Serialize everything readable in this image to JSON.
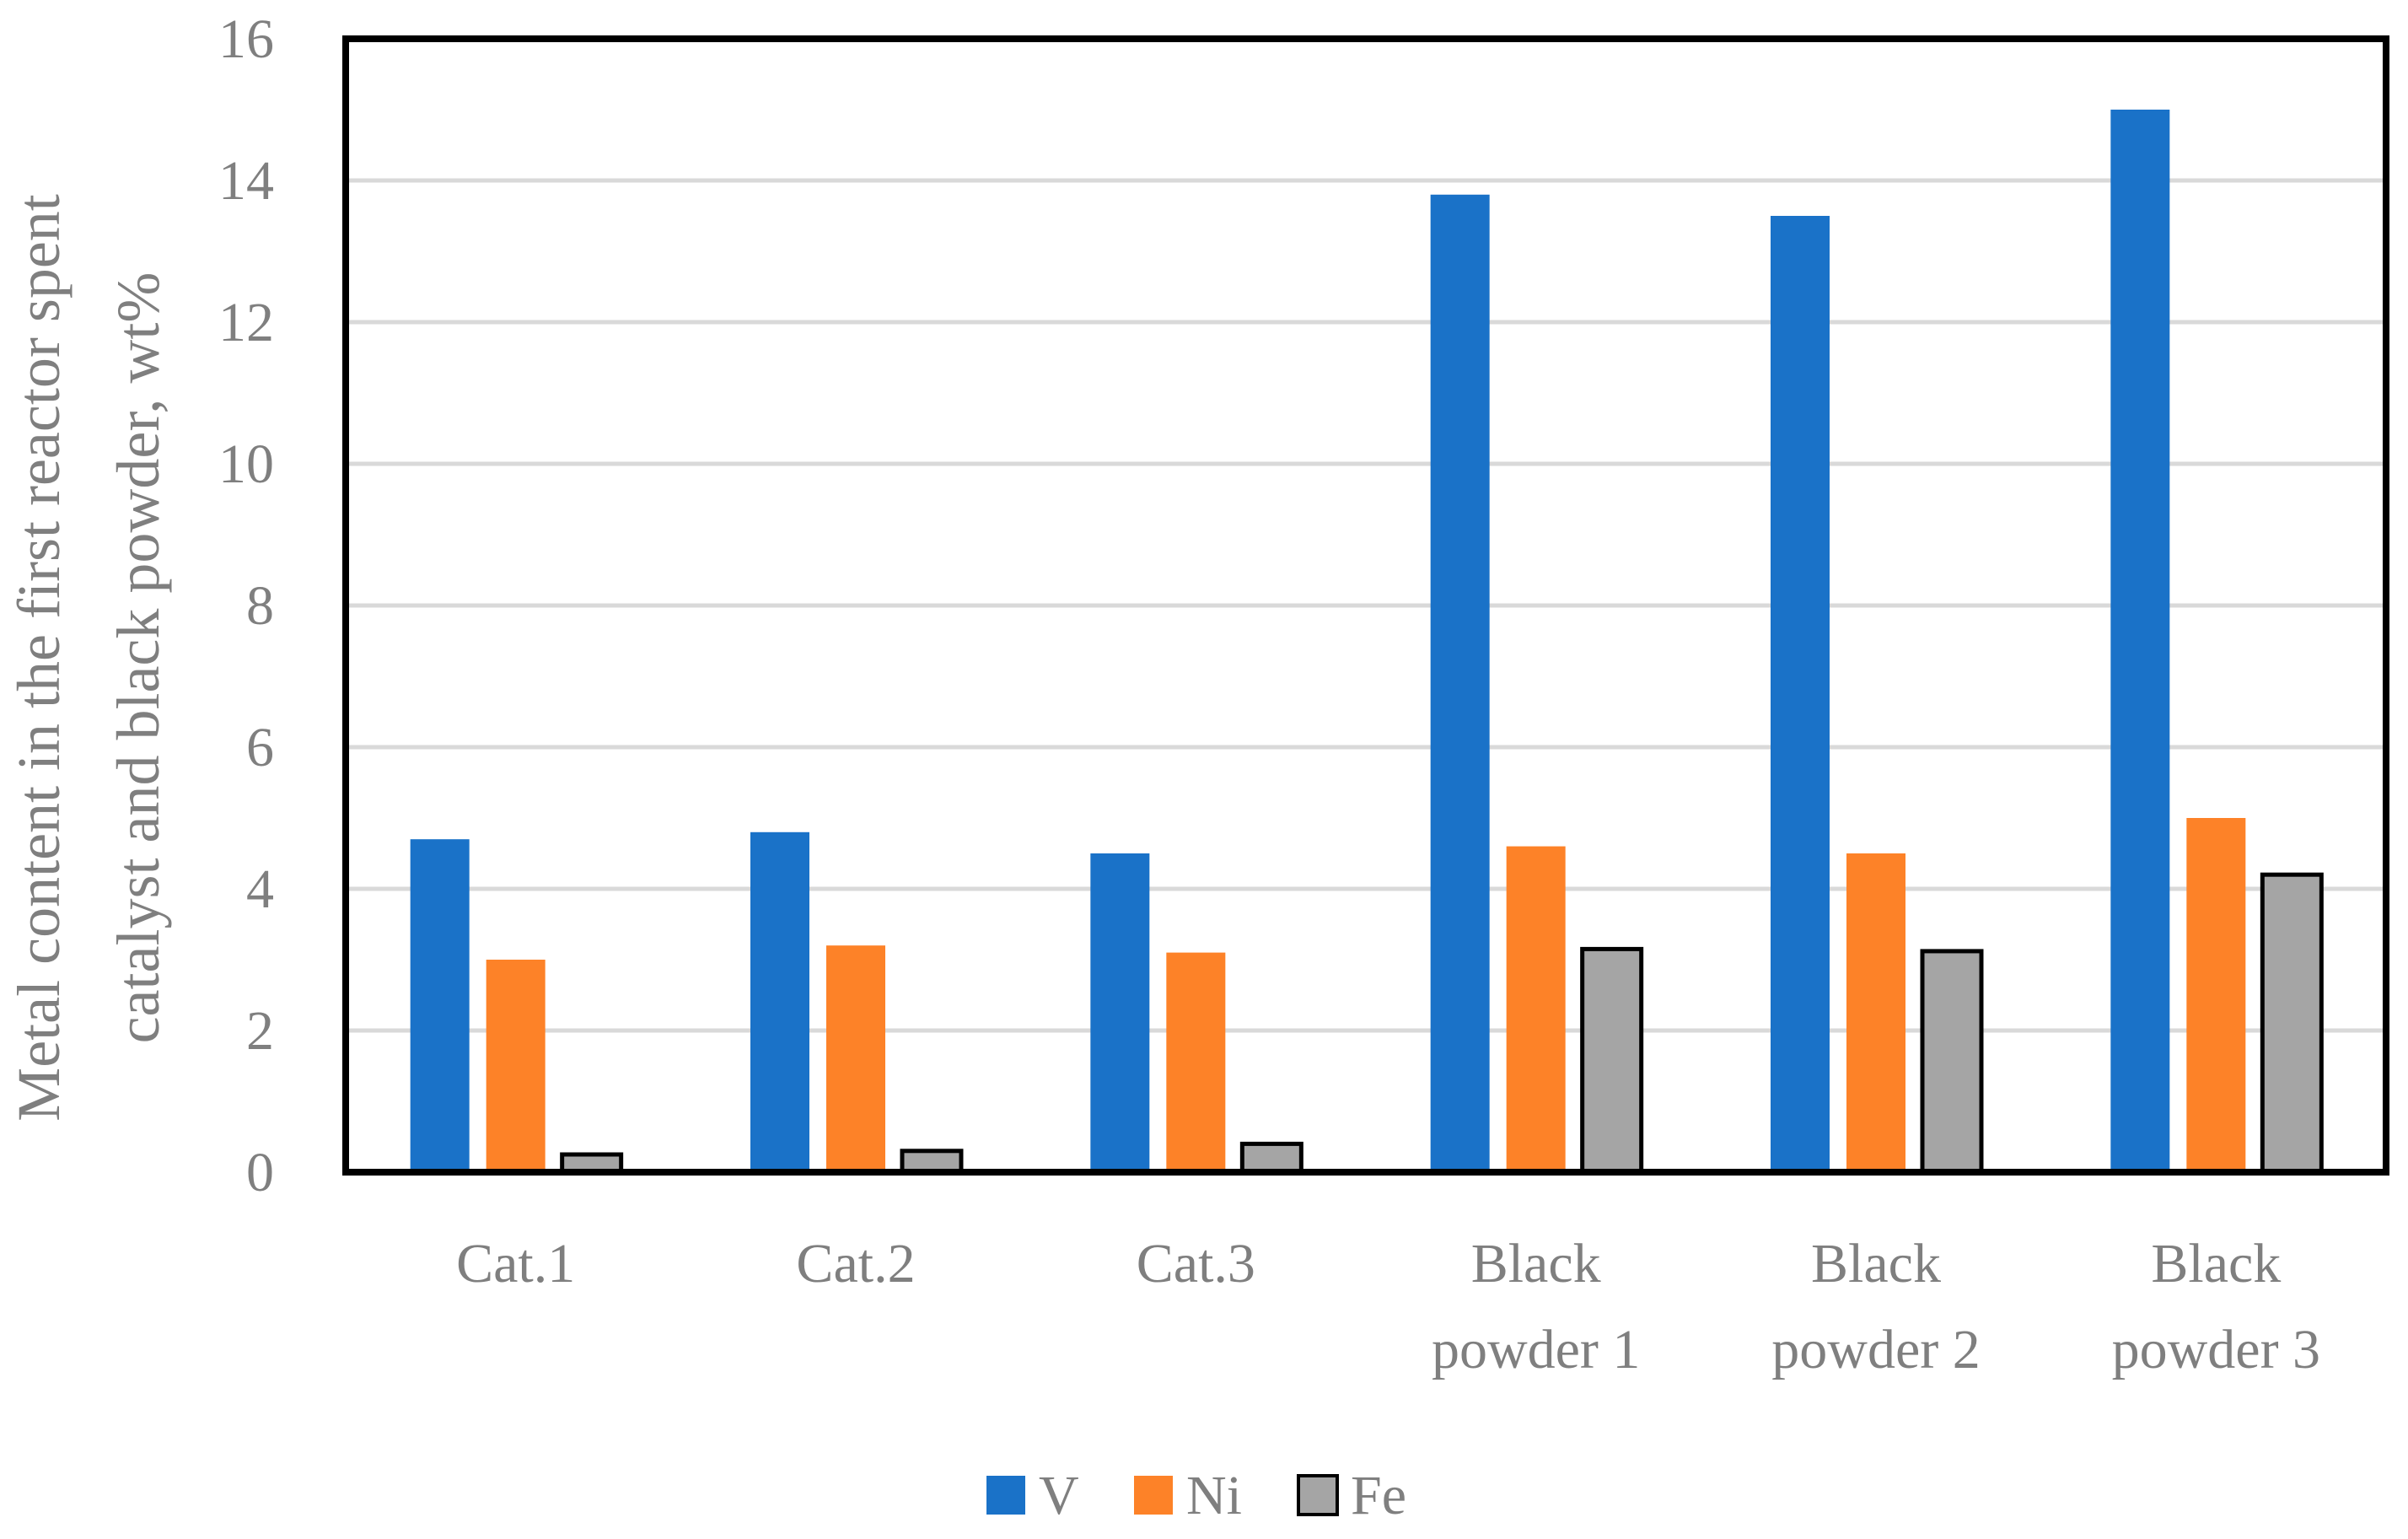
{
  "chart_data": {
    "type": "bar",
    "title": "",
    "xlabel": "",
    "ylabel": [
      "Metal content in the first reactor spent",
      "catalyst and black powder, wt%"
    ],
    "ylim": [
      0,
      16
    ],
    "yticks": [
      "0",
      "2",
      "4",
      "6",
      "8",
      "10",
      "12",
      "14",
      "16"
    ],
    "grid": true,
    "legend_position": "bottom",
    "categories": [
      [
        "Cat.1"
      ],
      [
        "Cat.2"
      ],
      [
        "Cat.3"
      ],
      [
        "Black",
        "powder 1"
      ],
      [
        "Black",
        "powder 2"
      ],
      [
        "Black",
        "powder 3"
      ]
    ],
    "series": [
      {
        "name": "V",
        "color": "#1a72c8",
        "values": [
          4.7,
          4.8,
          4.5,
          13.8,
          13.5,
          15.0
        ]
      },
      {
        "name": "Ni",
        "color": "#fd8228",
        "values": [
          3.0,
          3.2,
          3.1,
          4.6,
          4.5,
          5.0
        ]
      },
      {
        "name": "Fe",
        "color": "#a5a5a5",
        "values": [
          0.25,
          0.3,
          0.4,
          3.15,
          3.12,
          4.2
        ]
      }
    ]
  }
}
